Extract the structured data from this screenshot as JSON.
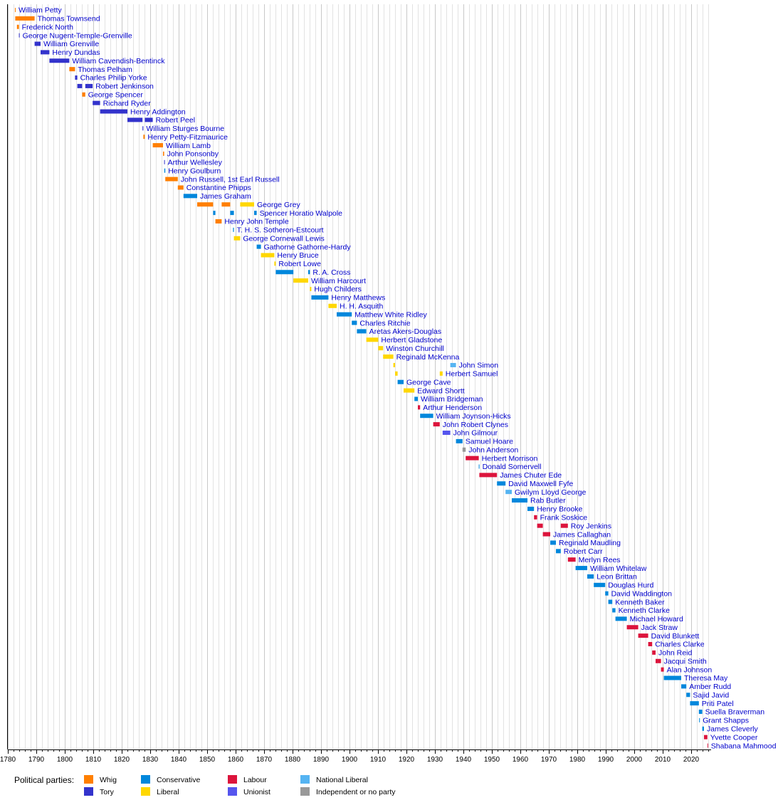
{
  "chart_data": {
    "type": "bar",
    "title": "",
    "xlabel": "",
    "ylabel": "",
    "xlim": [
      1780,
      2027
    ],
    "grid": true,
    "legend_position": "bottom-left",
    "x_ticks": [
      1780,
      1790,
      1800,
      1810,
      1820,
      1830,
      1840,
      1850,
      1860,
      1870,
      1880,
      1890,
      1900,
      1910,
      1920,
      1930,
      1940,
      1950,
      1960,
      1970,
      1980,
      1990,
      2000,
      2010,
      2020
    ],
    "legend_title": "Political parties:",
    "parties": [
      {
        "key": "whig",
        "name": "Whig",
        "color": "#FF7F00"
      },
      {
        "key": "tory",
        "name": "Tory",
        "color": "#3333CC"
      },
      {
        "key": "conservative",
        "name": "Conservative",
        "color": "#0087DC"
      },
      {
        "key": "liberal",
        "name": "Liberal",
        "color": "#FFD700"
      },
      {
        "key": "labour",
        "name": "Labour",
        "color": "#DC143C"
      },
      {
        "key": "unionist",
        "name": "Unionist",
        "color": "#5555EE"
      },
      {
        "key": "national_liberal",
        "name": "National Liberal",
        "color": "#55B4F2"
      },
      {
        "key": "independent",
        "name": "Independent or no party",
        "color": "#999999"
      }
    ],
    "series": [
      {
        "name": "William Petty",
        "terms": [
          [
            1782.5,
            1782.6,
            "whig"
          ]
        ]
      },
      {
        "name": "Thomas Townsend",
        "terms": [
          [
            1782.6,
            1789.4,
            "whig"
          ]
        ]
      },
      {
        "name": "Frederick North",
        "terms": [
          [
            1783.2,
            1783.9,
            "whig"
          ]
        ]
      },
      {
        "name": "George Nugent-Temple-Grenville",
        "terms": [
          [
            1783.9,
            1784.0,
            "tory"
          ]
        ]
      },
      {
        "name": "William Grenville",
        "terms": [
          [
            1789.4,
            1791.5,
            "tory"
          ]
        ]
      },
      {
        "name": "Henry Dundas",
        "terms": [
          [
            1791.5,
            1794.6,
            "tory"
          ]
        ]
      },
      {
        "name": "William Cavendish-Bentinck",
        "terms": [
          [
            1794.6,
            1801.6,
            "tory"
          ]
        ]
      },
      {
        "name": "Thomas Pelham",
        "terms": [
          [
            1801.6,
            1803.6,
            "whig"
          ]
        ]
      },
      {
        "name": "Charles Philip Yorke",
        "terms": [
          [
            1803.6,
            1804.4,
            "tory"
          ]
        ]
      },
      {
        "name": "Robert Jenkinson",
        "terms": [
          [
            1804.4,
            1806.1,
            "tory"
          ],
          [
            1807.2,
            1809.8,
            "tory"
          ]
        ]
      },
      {
        "name": "George Spencer",
        "terms": [
          [
            1806.1,
            1807.2,
            "whig"
          ]
        ]
      },
      {
        "name": "Richard Ryder",
        "terms": [
          [
            1809.8,
            1812.4,
            "tory"
          ]
        ]
      },
      {
        "name": "Henry Addington",
        "terms": [
          [
            1812.4,
            1822.0,
            "tory"
          ]
        ]
      },
      {
        "name": "Robert Peel",
        "terms": [
          [
            1822.0,
            1827.3,
            "tory"
          ],
          [
            1828.1,
            1830.9,
            "tory"
          ]
        ]
      },
      {
        "name": "William Sturges Bourne",
        "terms": [
          [
            1827.3,
            1827.6,
            "tory"
          ]
        ]
      },
      {
        "name": "Henry Petty-Fitzmaurice",
        "terms": [
          [
            1827.6,
            1828.1,
            "whig"
          ]
        ]
      },
      {
        "name": "William Lamb",
        "terms": [
          [
            1830.9,
            1834.5,
            "whig"
          ]
        ]
      },
      {
        "name": "John Ponsonby",
        "terms": [
          [
            1834.5,
            1834.9,
            "whig"
          ]
        ]
      },
      {
        "name": "Arthur Wellesley",
        "terms": [
          [
            1834.9,
            1834.95,
            "tory"
          ]
        ]
      },
      {
        "name": "Henry Goulburn",
        "terms": [
          [
            1834.95,
            1835.3,
            "conservative"
          ]
        ]
      },
      {
        "name": "John Russell, 1st Earl Russell",
        "terms": [
          [
            1835.3,
            1839.7,
            "whig"
          ]
        ]
      },
      {
        "name": "Constantine Phipps",
        "terms": [
          [
            1839.7,
            1841.7,
            "whig"
          ]
        ]
      },
      {
        "name": "James Graham",
        "terms": [
          [
            1841.7,
            1846.5,
            "conservative"
          ]
        ]
      },
      {
        "name": "George Grey",
        "terms": [
          [
            1846.5,
            1852.1,
            "whig"
          ],
          [
            1855.1,
            1858.1,
            "whig"
          ],
          [
            1861.6,
            1866.5,
            "liberal"
          ]
        ]
      },
      {
        "name": "Spencer Horatio Walpole",
        "terms": [
          [
            1852.1,
            1852.9,
            "conservative"
          ],
          [
            1858.1,
            1859.4,
            "conservative"
          ],
          [
            1866.5,
            1867.4,
            "conservative"
          ]
        ]
      },
      {
        "name": "Henry John Temple",
        "terms": [
          [
            1852.9,
            1855.1,
            "whig"
          ]
        ]
      },
      {
        "name": "T. H. S. Sotheron-Estcourt",
        "terms": [
          [
            1859.1,
            1859.4,
            "conservative"
          ]
        ]
      },
      {
        "name": "George Cornewall Lewis",
        "terms": [
          [
            1859.4,
            1861.6,
            "liberal"
          ]
        ]
      },
      {
        "name": "Gathorne Gathorne-Hardy",
        "terms": [
          [
            1867.4,
            1868.9,
            "conservative"
          ]
        ]
      },
      {
        "name": "Henry Bruce",
        "terms": [
          [
            1868.9,
            1873.6,
            "liberal"
          ]
        ]
      },
      {
        "name": "Robert Lowe",
        "terms": [
          [
            1873.6,
            1874.1,
            "liberal"
          ]
        ]
      },
      {
        "name": "R. A. Cross",
        "terms": [
          [
            1874.1,
            1880.3,
            "conservative"
          ],
          [
            1885.5,
            1886.1,
            "conservative"
          ]
        ]
      },
      {
        "name": "William Harcourt",
        "terms": [
          [
            1880.3,
            1885.5,
            "liberal"
          ]
        ]
      },
      {
        "name": "Hugh Childers",
        "terms": [
          [
            1886.1,
            1886.6,
            "liberal"
          ]
        ]
      },
      {
        "name": "Henry Matthews",
        "terms": [
          [
            1886.6,
            1892.6,
            "conservative"
          ]
        ]
      },
      {
        "name": "H. H. Asquith",
        "terms": [
          [
            1892.6,
            1895.5,
            "liberal"
          ]
        ]
      },
      {
        "name": "Matthew White Ridley",
        "terms": [
          [
            1895.5,
            1900.8,
            "conservative"
          ]
        ]
      },
      {
        "name": "Charles Ritchie",
        "terms": [
          [
            1900.8,
            1902.6,
            "conservative"
          ]
        ]
      },
      {
        "name": "Aretas Akers-Douglas",
        "terms": [
          [
            1902.6,
            1905.9,
            "conservative"
          ]
        ]
      },
      {
        "name": "Herbert Gladstone",
        "terms": [
          [
            1905.9,
            1910.1,
            "liberal"
          ]
        ]
      },
      {
        "name": "Winston Churchill",
        "terms": [
          [
            1910.1,
            1911.8,
            "liberal"
          ]
        ]
      },
      {
        "name": "Reginald McKenna",
        "terms": [
          [
            1911.8,
            1915.4,
            "liberal"
          ]
        ]
      },
      {
        "name": "John Simon",
        "terms": [
          [
            1915.4,
            1916.0,
            "liberal"
          ],
          [
            1935.4,
            1937.4,
            "national_liberal"
          ]
        ]
      },
      {
        "name": "Herbert Samuel",
        "terms": [
          [
            1916.0,
            1916.9,
            "liberal"
          ],
          [
            1931.7,
            1932.7,
            "liberal"
          ]
        ]
      },
      {
        "name": "George Cave",
        "terms": [
          [
            1916.9,
            1919.0,
            "conservative"
          ]
        ]
      },
      {
        "name": "Edward Shortt",
        "terms": [
          [
            1919.0,
            1922.8,
            "liberal"
          ]
        ]
      },
      {
        "name": "William Bridgeman",
        "terms": [
          [
            1922.8,
            1924.0,
            "conservative"
          ]
        ]
      },
      {
        "name": "Arthur Henderson",
        "terms": [
          [
            1924.0,
            1924.8,
            "labour"
          ]
        ]
      },
      {
        "name": "William Joynson-Hicks",
        "terms": [
          [
            1924.8,
            1929.4,
            "conservative"
          ]
        ]
      },
      {
        "name": "John Robert Clynes",
        "terms": [
          [
            1929.4,
            1931.7,
            "labour"
          ]
        ]
      },
      {
        "name": "John Gilmour",
        "terms": [
          [
            1932.7,
            1935.4,
            "unionist"
          ]
        ]
      },
      {
        "name": "Samuel Hoare",
        "terms": [
          [
            1937.4,
            1939.7,
            "conservative"
          ]
        ]
      },
      {
        "name": "John Anderson",
        "terms": [
          [
            1939.7,
            1940.8,
            "independent"
          ]
        ]
      },
      {
        "name": "Herbert Morrison",
        "terms": [
          [
            1940.8,
            1945.4,
            "labour"
          ]
        ]
      },
      {
        "name": "Donald Somervell",
        "terms": [
          [
            1945.4,
            1945.6,
            "conservative"
          ]
        ]
      },
      {
        "name": "James Chuter Ede",
        "terms": [
          [
            1945.6,
            1951.8,
            "labour"
          ]
        ]
      },
      {
        "name": "David Maxwell Fyfe",
        "terms": [
          [
            1951.8,
            1954.8,
            "conservative"
          ]
        ]
      },
      {
        "name": "Gwilym Lloyd George",
        "terms": [
          [
            1954.8,
            1957.0,
            "national_liberal"
          ]
        ]
      },
      {
        "name": "Rab Butler",
        "terms": [
          [
            1957.0,
            1962.5,
            "conservative"
          ]
        ]
      },
      {
        "name": "Henry Brooke",
        "terms": [
          [
            1962.5,
            1964.8,
            "conservative"
          ]
        ]
      },
      {
        "name": "Frank Soskice",
        "terms": [
          [
            1964.8,
            1965.9,
            "labour"
          ]
        ]
      },
      {
        "name": "Roy Jenkins",
        "terms": [
          [
            1965.9,
            1967.9,
            "labour"
          ],
          [
            1974.2,
            1976.7,
            "labour"
          ]
        ]
      },
      {
        "name": "James Callaghan",
        "terms": [
          [
            1967.9,
            1970.5,
            "labour"
          ]
        ]
      },
      {
        "name": "Reginald Maudling",
        "terms": [
          [
            1970.5,
            1972.5,
            "conservative"
          ]
        ]
      },
      {
        "name": "Robert Carr",
        "terms": [
          [
            1972.5,
            1974.2,
            "conservative"
          ]
        ]
      },
      {
        "name": "Merlyn Rees",
        "terms": [
          [
            1976.7,
            1979.4,
            "labour"
          ]
        ]
      },
      {
        "name": "William Whitelaw",
        "terms": [
          [
            1979.4,
            1983.5,
            "conservative"
          ]
        ]
      },
      {
        "name": "Leon Brittan",
        "terms": [
          [
            1983.5,
            1985.8,
            "conservative"
          ]
        ]
      },
      {
        "name": "Douglas Hurd",
        "terms": [
          [
            1985.8,
            1989.8,
            "conservative"
          ]
        ]
      },
      {
        "name": "David Waddington",
        "terms": [
          [
            1989.8,
            1990.9,
            "conservative"
          ]
        ]
      },
      {
        "name": "Kenneth Baker",
        "terms": [
          [
            1990.9,
            1992.3,
            "conservative"
          ]
        ]
      },
      {
        "name": "Kenneth Clarke",
        "terms": [
          [
            1992.3,
            1993.4,
            "conservative"
          ]
        ]
      },
      {
        "name": "Michael Howard",
        "terms": [
          [
            1993.4,
            1997.4,
            "conservative"
          ]
        ]
      },
      {
        "name": "Jack Straw",
        "terms": [
          [
            1997.4,
            2001.4,
            "labour"
          ]
        ]
      },
      {
        "name": "David Blunkett",
        "terms": [
          [
            2001.4,
            2004.9,
            "labour"
          ]
        ]
      },
      {
        "name": "Charles Clarke",
        "terms": [
          [
            2004.9,
            2006.3,
            "labour"
          ]
        ]
      },
      {
        "name": "John Reid",
        "terms": [
          [
            2006.3,
            2007.5,
            "labour"
          ]
        ]
      },
      {
        "name": "Jacqui Smith",
        "terms": [
          [
            2007.5,
            2009.4,
            "labour"
          ]
        ]
      },
      {
        "name": "Alan Johnson",
        "terms": [
          [
            2009.4,
            2010.4,
            "labour"
          ]
        ]
      },
      {
        "name": "Theresa May",
        "terms": [
          [
            2010.4,
            2016.5,
            "conservative"
          ]
        ]
      },
      {
        "name": "Amber Rudd",
        "terms": [
          [
            2016.5,
            2018.3,
            "conservative"
          ]
        ]
      },
      {
        "name": "Sajid Javid",
        "terms": [
          [
            2018.3,
            2019.6,
            "conservative"
          ]
        ]
      },
      {
        "name": "Priti Patel",
        "terms": [
          [
            2019.6,
            2022.7,
            "conservative"
          ]
        ]
      },
      {
        "name": "Suella Braverman",
        "terms": [
          [
            2022.7,
            2023.9,
            "conservative"
          ]
        ]
      },
      {
        "name": "Grant Shapps",
        "terms": [
          [
            2022.8,
            2022.85,
            "conservative"
          ]
        ]
      },
      {
        "name": "James Cleverly",
        "terms": [
          [
            2023.9,
            2024.5,
            "conservative"
          ]
        ]
      },
      {
        "name": "Yvette Cooper",
        "terms": [
          [
            2024.5,
            2025.7,
            "labour"
          ]
        ]
      },
      {
        "name": "Shabana Mahmood",
        "terms": [
          [
            2025.7,
            2025.9,
            "labour"
          ]
        ]
      }
    ]
  }
}
